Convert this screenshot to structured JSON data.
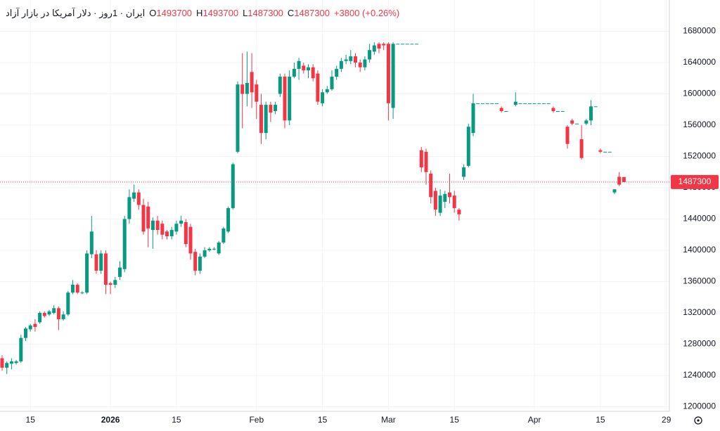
{
  "chart_data": {
    "type": "candlestick",
    "title": "ایران · 1روز · دلار آمریکا در بازار آزاد",
    "ohlc_legend": [
      {
        "key": "O",
        "value": 1493700
      },
      {
        "key": "H",
        "value": 1493700
      },
      {
        "key": "L",
        "value": 1487300
      },
      {
        "key": "C",
        "value": 1487300
      }
    ],
    "change_text": "+3800 (+0.26%)",
    "last_price": 1487300,
    "up_color": "#089981",
    "down_color": "#f23645",
    "grid": true,
    "ylim": [
      1196000,
      1720000
    ],
    "yticks": [
      1200000,
      1240000,
      1280000,
      1320000,
      1360000,
      1400000,
      1440000,
      1480000,
      1520000,
      1560000,
      1600000,
      1640000,
      1680000
    ],
    "categories": [
      null,
      null,
      null,
      null,
      null,
      null,
      "15",
      null,
      null,
      null,
      null,
      null,
      null,
      null,
      null,
      null,
      null,
      null,
      null,
      null,
      null,
      null,
      null,
      "2026",
      null,
      null,
      null,
      null,
      null,
      null,
      null,
      null,
      null,
      null,
      null,
      null,
      null,
      "15",
      null,
      null,
      null,
      null,
      null,
      null,
      null,
      null,
      null,
      null,
      null,
      null,
      null,
      null,
      null,
      null,
      "Feb",
      null,
      null,
      null,
      null,
      null,
      null,
      null,
      null,
      null,
      null,
      null,
      null,
      null,
      "15",
      null,
      null,
      null,
      null,
      null,
      null,
      null,
      null,
      null,
      null,
      null,
      null,
      null,
      "Mar",
      null,
      null,
      null,
      null,
      null,
      null,
      null,
      null,
      null,
      null,
      null,
      null,
      null,
      "15",
      null,
      null,
      null,
      null,
      null,
      null,
      null,
      null,
      null,
      null,
      null,
      null,
      null,
      null,
      null,
      null,
      "Apr",
      null,
      null,
      null,
      null,
      null,
      null,
      null,
      null,
      null,
      null,
      null,
      null,
      null,
      "15",
      null,
      null,
      null,
      null,
      null,
      null,
      null,
      null,
      null,
      null,
      null,
      null,
      null,
      "29"
    ],
    "series": {
      "open": [
        1262000,
        1250000,
        1255000,
        1256000,
        1258000,
        1288000,
        1299000,
        1306000,
        1308000,
        1320000,
        1318000,
        1320000,
        1326000,
        1312000,
        1318000,
        1346000,
        1356000,
        1346000,
        1346000,
        1395000,
        1395000,
        1374000,
        1396000,
        1358000,
        1356000,
        1366000,
        1376000,
        1440000,
        1466000,
        1474000,
        1458000,
        1456000,
        1426000,
        1438000,
        1434000,
        1424000,
        1418000,
        1424000,
        1434000,
        1436000,
        1430000,
        1398000,
        1374000,
        1392000,
        1400000,
        1402000,
        1396000,
        1410000,
        1424000,
        1454000,
        1526000,
        1612000,
        1600000,
        1628000,
        1612000,
        1586000,
        1550000,
        1586000,
        1578000,
        1600000,
        1622000,
        1566000,
        1622000,
        1632000,
        1636000,
        1630000,
        1634000,
        1626000,
        1588000,
        1602000,
        1606000,
        1622000,
        1632000,
        1642000,
        1642000,
        1648000,
        1640000,
        1634000,
        1644000,
        1654000,
        1664000,
        1664000,
        1664000,
        1582000,
        1664000,
        1664000,
        1664000,
        1664000,
        1664000,
        1528000,
        1526000,
        1498000,
        1476000,
        1448000,
        1462000,
        1474000,
        1470000,
        1452000,
        1494000,
        1508000,
        1550000,
        1588000,
        1588000,
        1588000,
        1588000,
        1588000,
        1582000,
        1578000,
        null,
        1586000,
        1588000,
        1588000,
        1588000,
        1588000,
        1588000,
        1588000,
        1588000,
        1582000,
        1578000,
        1578000,
        1558000,
        1566000,
        1562000,
        1542000,
        1562000,
        1566000,
        1584000,
        1528000,
        1526000,
        1526000,
        1474000,
        1494000,
        1493700,
        null,
        null,
        null,
        null,
        null,
        null,
        null,
        null,
        null
      ],
      "high": [
        1266000,
        1258000,
        1262000,
        1260000,
        1292000,
        1302000,
        1306000,
        1312000,
        1322000,
        1322000,
        1324000,
        1330000,
        1328000,
        1322000,
        1348000,
        1362000,
        1358000,
        1348000,
        1400000,
        1444000,
        1400000,
        1400000,
        1400000,
        1360000,
        1366000,
        1386000,
        1444000,
        1478000,
        1484000,
        1478000,
        1466000,
        1462000,
        1442000,
        1444000,
        1438000,
        1426000,
        1430000,
        1438000,
        1444000,
        1440000,
        1434000,
        1402000,
        1396000,
        1404000,
        1404000,
        1404000,
        1412000,
        1430000,
        1456000,
        1512000,
        1616000,
        1652000,
        1654000,
        1652000,
        1618000,
        1600000,
        1590000,
        1590000,
        1590000,
        1626000,
        1626000,
        1630000,
        1640000,
        1646000,
        1640000,
        1638000,
        1638000,
        1630000,
        1606000,
        1610000,
        1630000,
        1636000,
        1646000,
        1650000,
        1656000,
        1652000,
        1644000,
        1648000,
        1664000,
        1666000,
        1666000,
        1666000,
        1666000,
        1666000,
        1664000,
        1664000,
        1664000,
        1664000,
        1664000,
        1532000,
        1530000,
        1502000,
        1480000,
        1478000,
        1476000,
        1498000,
        1476000,
        1454000,
        1510000,
        1562000,
        1600000,
        1588000,
        1588000,
        1588000,
        1588000,
        1588000,
        1584000,
        1578000,
        null,
        1602000,
        1588000,
        1588000,
        1588000,
        1588000,
        1588000,
        1588000,
        1588000,
        1584000,
        1578000,
        1578000,
        1560000,
        1568000,
        1562000,
        1560000,
        1568000,
        1592000,
        1584000,
        1530000,
        1526000,
        1526000,
        1478000,
        1500000,
        1493700,
        null,
        null,
        null,
        null,
        null,
        null,
        null,
        null,
        null
      ],
      "low": [
        1246000,
        1242000,
        1248000,
        1254000,
        1256000,
        1284000,
        1296000,
        1296000,
        1306000,
        1314000,
        1316000,
        1318000,
        1298000,
        1310000,
        1316000,
        1344000,
        1344000,
        1344000,
        1344000,
        1390000,
        1370000,
        1370000,
        1344000,
        1344000,
        1352000,
        1362000,
        1372000,
        1434000,
        1462000,
        1452000,
        1420000,
        1404000,
        1402000,
        1420000,
        1414000,
        1414000,
        1414000,
        1420000,
        1430000,
        1404000,
        1388000,
        1368000,
        1370000,
        1390000,
        1398000,
        1400000,
        1394000,
        1408000,
        1422000,
        1452000,
        1524000,
        1556000,
        1584000,
        1582000,
        1568000,
        1536000,
        1542000,
        1564000,
        1574000,
        1596000,
        1556000,
        1560000,
        1620000,
        1618000,
        1626000,
        1620000,
        1616000,
        1586000,
        1584000,
        1600000,
        1604000,
        1618000,
        1628000,
        1638000,
        1638000,
        1634000,
        1628000,
        1630000,
        1640000,
        1650000,
        1652000,
        1656000,
        1566000,
        1568000,
        1664000,
        1664000,
        1664000,
        1664000,
        1664000,
        1500000,
        1484000,
        1460000,
        1444000,
        1444000,
        1454000,
        1460000,
        1448000,
        1438000,
        1490000,
        1506000,
        1546000,
        1588000,
        1588000,
        1588000,
        1588000,
        1588000,
        1576000,
        1578000,
        null,
        1584000,
        1588000,
        1588000,
        1588000,
        1588000,
        1588000,
        1588000,
        1588000,
        1576000,
        1578000,
        1578000,
        1530000,
        1560000,
        1562000,
        1516000,
        1560000,
        1560000,
        1584000,
        1524000,
        1526000,
        1526000,
        1472000,
        1482000,
        1487300,
        null,
        null,
        null,
        null,
        null,
        null,
        null,
        null,
        null
      ],
      "close": [
        1250000,
        1256000,
        1258000,
        1258000,
        1288000,
        1300000,
        1304000,
        1302000,
        1320000,
        1316000,
        1322000,
        1326000,
        1312000,
        1318000,
        1346000,
        1356000,
        1346000,
        1346000,
        1396000,
        1424000,
        1374000,
        1396000,
        1356000,
        1356000,
        1362000,
        1378000,
        1440000,
        1468000,
        1474000,
        1458000,
        1424000,
        1428000,
        1438000,
        1426000,
        1420000,
        1418000,
        1426000,
        1434000,
        1438000,
        1408000,
        1396000,
        1374000,
        1392000,
        1400000,
        1402000,
        1402000,
        1410000,
        1428000,
        1454000,
        1510000,
        1612000,
        1600000,
        1614000,
        1602000,
        1590000,
        1550000,
        1586000,
        1576000,
        1586000,
        1622000,
        1566000,
        1622000,
        1632000,
        1642000,
        1630000,
        1634000,
        1620000,
        1590000,
        1602000,
        1606000,
        1622000,
        1632000,
        1642000,
        1644000,
        1648000,
        1640000,
        1634000,
        1644000,
        1656000,
        1662000,
        1658000,
        1662000,
        1588000,
        1664000,
        1664000,
        1664000,
        1664000,
        1664000,
        1664000,
        1506000,
        1500000,
        1468000,
        1452000,
        1470000,
        1472000,
        1468000,
        1454000,
        1446000,
        1506000,
        1558000,
        1588000,
        1588000,
        1588000,
        1588000,
        1588000,
        1588000,
        1578000,
        1578000,
        null,
        1590000,
        1588000,
        1588000,
        1588000,
        1588000,
        1588000,
        1588000,
        1588000,
        1578000,
        1578000,
        1578000,
        1536000,
        1562000,
        1562000,
        1518000,
        1566000,
        1584000,
        1584000,
        1526000,
        1526000,
        1526000,
        1478000,
        1484000,
        1487300,
        null,
        null,
        null,
        null,
        null,
        null,
        null,
        null,
        null
      ]
    }
  }
}
